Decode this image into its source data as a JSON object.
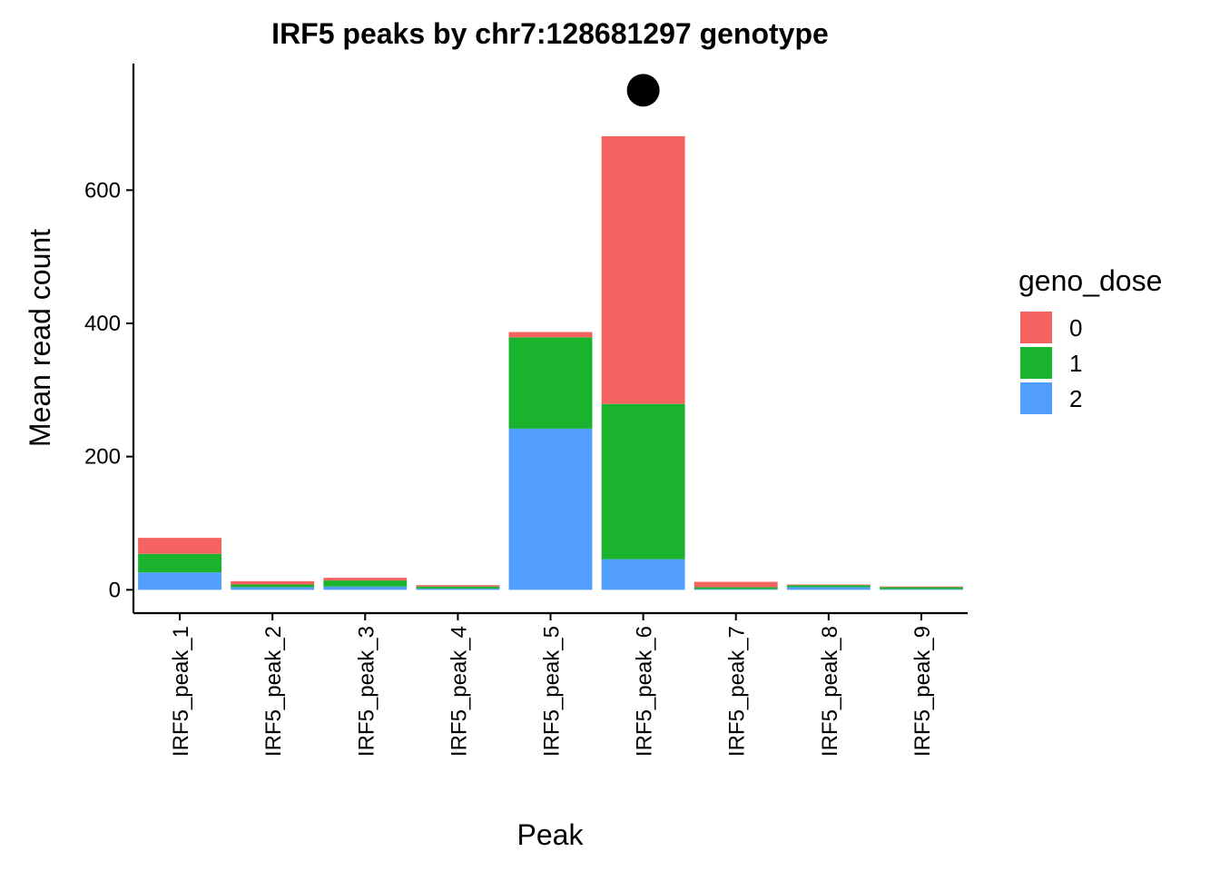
{
  "chart_data": {
    "type": "bar",
    "stacked": true,
    "title": "IRF5 peaks by chr7:128681297 genotype",
    "xlabel": "Peak",
    "ylabel": "Mean read count",
    "ylim": [
      -35,
      790
    ],
    "yticks": [
      0,
      200,
      400,
      600
    ],
    "ytick_labels": [
      "0",
      "200",
      "400",
      "600"
    ],
    "categories": [
      "IRF5_peak_1",
      "IRF5_peak_2",
      "IRF5_peak_3",
      "IRF5_peak_4",
      "IRF5_peak_5",
      "IRF5_peak_6",
      "IRF5_peak_7",
      "IRF5_peak_8",
      "IRF5_peak_9"
    ],
    "series": [
      {
        "name": "2",
        "color": "#529EFF",
        "values": [
          26,
          4,
          5,
          2,
          242,
          46,
          1,
          4,
          1
        ]
      },
      {
        "name": "1",
        "color": "#19B32E",
        "values": [
          28,
          4,
          9,
          3,
          137,
          233,
          3,
          3,
          3
        ]
      },
      {
        "name": "0",
        "color": "#F46360",
        "values": [
          24,
          5,
          4,
          2,
          8,
          402,
          8,
          1,
          1
        ]
      }
    ],
    "legend": {
      "title": "geno_dose",
      "position": "right",
      "entries": [
        {
          "label": "0",
          "color": "#F46360"
        },
        {
          "label": "1",
          "color": "#19B32E"
        },
        {
          "label": "2",
          "color": "#529EFF"
        }
      ]
    },
    "annotations": [
      {
        "type": "point",
        "category": "IRF5_peak_6",
        "y": 750,
        "color": "#000000"
      }
    ],
    "grid": false
  }
}
